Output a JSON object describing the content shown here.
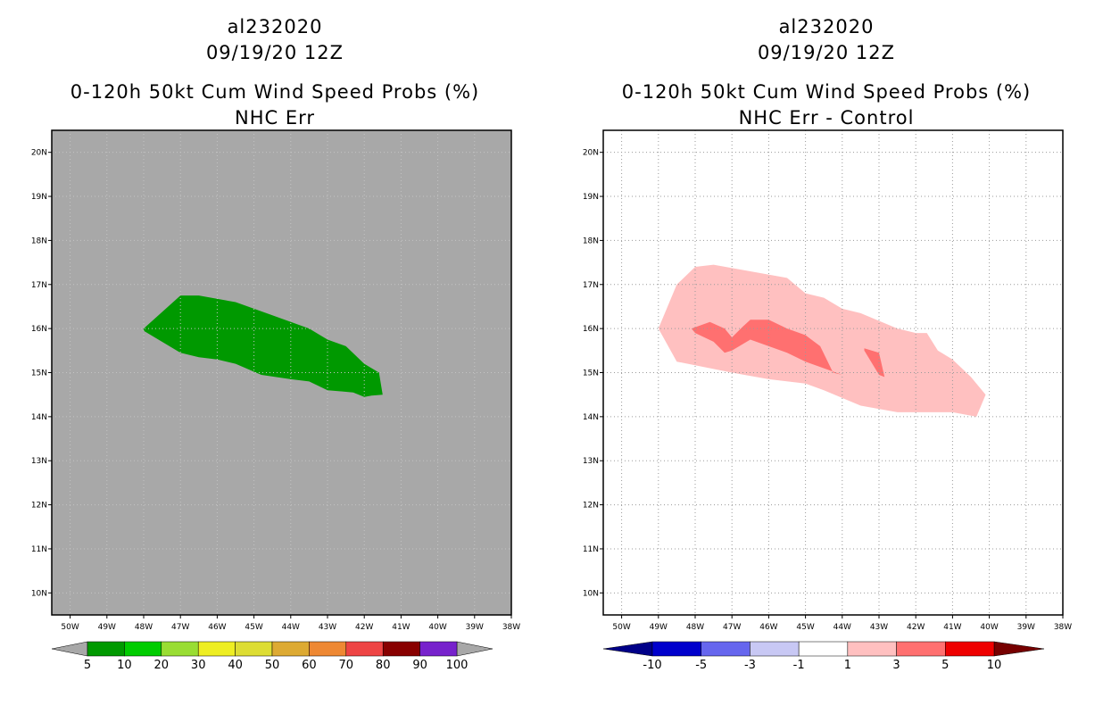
{
  "panels": [
    {
      "id": "left",
      "storm_id": "al232020",
      "datetime": "09/19/20 12Z",
      "title_line1": "0-120h 50kt Cum Wind Speed Probs (%)",
      "title_line2": "NHC Err",
      "background": "#a8a8a8",
      "show_grid": false
    },
    {
      "id": "right",
      "storm_id": "al232020",
      "datetime": "09/19/20 12Z",
      "title_line1": "0-120h 50kt Cum Wind Speed Probs (%)",
      "title_line2": "NHC Err - Control",
      "background": "#ffffff",
      "show_grid": true
    }
  ],
  "chart_data": [
    {
      "type": "map-contour",
      "title": "0-120h 50kt Cum Wind Speed Probs (%)",
      "subtitle": "NHC Err",
      "xlim_lon_west": [
        50.5,
        38
      ],
      "ylim_lat_north": [
        9.5,
        20.5
      ],
      "x_ticks": [
        "50W",
        "49W",
        "48W",
        "47W",
        "46W",
        "45W",
        "44W",
        "43W",
        "42W",
        "41W",
        "40W",
        "39W",
        "38W"
      ],
      "x_tick_values": [
        50,
        49,
        48,
        47,
        46,
        45,
        44,
        43,
        42,
        41,
        40,
        39,
        38
      ],
      "y_ticks": [
        "10N",
        "11N",
        "12N",
        "13N",
        "14N",
        "15N",
        "16N",
        "17N",
        "18N",
        "19N",
        "20N"
      ],
      "y_tick_values": [
        10,
        11,
        12,
        13,
        14,
        15,
        16,
        17,
        18,
        19,
        20
      ],
      "colorbar": {
        "labels": [
          "5",
          "10",
          "20",
          "30",
          "40",
          "50",
          "60",
          "70",
          "80",
          "90",
          "100"
        ],
        "colors": [
          "#009900",
          "#00cc00",
          "#99dd33",
          "#eeee22",
          "#dddd33",
          "#ddaa33",
          "#ee8833",
          "#ee4444",
          "#880000",
          "#7722cc"
        ],
        "lower_arrow_color": "#a8a8a8",
        "upper_arrow_color": "#a8a8a8"
      },
      "regions": [
        {
          "name": "prob-5-10",
          "color": "#009900",
          "points": [
            [
              48.0,
              16.0
            ],
            [
              47.0,
              16.75
            ],
            [
              46.5,
              16.75
            ],
            [
              45.5,
              16.6
            ],
            [
              44.5,
              16.3
            ],
            [
              43.5,
              16.0
            ],
            [
              43.0,
              15.75
            ],
            [
              42.5,
              15.6
            ],
            [
              42.0,
              15.2
            ],
            [
              41.6,
              15.0
            ],
            [
              41.5,
              14.5
            ],
            [
              41.8,
              14.48
            ],
            [
              42.0,
              14.45
            ],
            [
              42.3,
              14.55
            ],
            [
              43.0,
              14.6
            ],
            [
              43.5,
              14.8
            ],
            [
              44.0,
              14.85
            ],
            [
              44.8,
              14.95
            ],
            [
              45.5,
              15.2
            ],
            [
              46.0,
              15.3
            ],
            [
              46.5,
              15.35
            ],
            [
              47.0,
              15.45
            ],
            [
              48.0,
              15.95
            ]
          ]
        }
      ]
    },
    {
      "type": "map-contour",
      "title": "0-120h 50kt Cum Wind Speed Probs (%)",
      "subtitle": "NHC Err - Control",
      "xlim_lon_west": [
        50.5,
        38
      ],
      "ylim_lat_north": [
        9.5,
        20.5
      ],
      "x_ticks": [
        "50W",
        "49W",
        "48W",
        "47W",
        "46W",
        "45W",
        "44W",
        "43W",
        "42W",
        "41W",
        "40W",
        "39W",
        "38W"
      ],
      "x_tick_values": [
        50,
        49,
        48,
        47,
        46,
        45,
        44,
        43,
        42,
        41,
        40,
        39,
        38
      ],
      "y_ticks": [
        "10N",
        "11N",
        "12N",
        "13N",
        "14N",
        "15N",
        "16N",
        "17N",
        "18N",
        "19N",
        "20N"
      ],
      "y_tick_values": [
        10,
        11,
        12,
        13,
        14,
        15,
        16,
        17,
        18,
        19,
        20
      ],
      "colorbar": {
        "labels": [
          "-10",
          "-5",
          "-3",
          "-1",
          "1",
          "3",
          "5",
          "10"
        ],
        "colors": [
          "#0000cc",
          "#6666ee",
          "#c8c8f4",
          "#ffffff",
          "#ffc0c0",
          "#ff7070",
          "#ee0000"
        ],
        "lower_arrow_color": "#000088",
        "upper_arrow_color": "#770000"
      },
      "regions": [
        {
          "name": "diff-1-3",
          "color": "#ffc0c0",
          "points": [
            [
              49.0,
              16.0
            ],
            [
              48.5,
              17.0
            ],
            [
              48.0,
              17.4
            ],
            [
              47.5,
              17.45
            ],
            [
              46.5,
              17.3
            ],
            [
              45.5,
              17.15
            ],
            [
              45.0,
              16.8
            ],
            [
              44.5,
              16.7
            ],
            [
              44.0,
              16.45
            ],
            [
              43.5,
              16.35
            ],
            [
              42.5,
              16.0
            ],
            [
              42.0,
              15.9
            ],
            [
              41.7,
              15.9
            ],
            [
              41.4,
              15.5
            ],
            [
              41.0,
              15.3
            ],
            [
              40.5,
              14.9
            ],
            [
              40.1,
              14.5
            ],
            [
              40.35,
              14.0
            ],
            [
              41.0,
              14.1
            ],
            [
              42.5,
              14.1
            ],
            [
              43.5,
              14.25
            ],
            [
              44.5,
              14.6
            ],
            [
              45.0,
              14.75
            ],
            [
              46.0,
              14.85
            ],
            [
              47.0,
              15.0
            ],
            [
              48.5,
              15.25
            ]
          ]
        },
        {
          "name": "diff-3-5-main",
          "color": "#ff7070",
          "points": [
            [
              48.1,
              16.0
            ],
            [
              47.6,
              16.15
            ],
            [
              47.2,
              16.0
            ],
            [
              47.0,
              15.8
            ],
            [
              46.7,
              16.05
            ],
            [
              46.5,
              16.2
            ],
            [
              46.0,
              16.2
            ],
            [
              45.5,
              16.0
            ],
            [
              45.0,
              15.85
            ],
            [
              44.6,
              15.6
            ],
            [
              44.25,
              15.0
            ],
            [
              44.0,
              14.95
            ],
            [
              44.5,
              15.1
            ],
            [
              45.0,
              15.25
            ],
            [
              45.5,
              15.45
            ],
            [
              46.0,
              15.6
            ],
            [
              46.5,
              15.75
            ],
            [
              47.0,
              15.5
            ],
            [
              47.2,
              15.45
            ],
            [
              47.5,
              15.7
            ],
            [
              48.0,
              15.9
            ]
          ]
        },
        {
          "name": "diff-3-5-small",
          "color": "#ff7070",
          "points": [
            [
              43.4,
              15.55
            ],
            [
              43.0,
              15.45
            ],
            [
              42.85,
              14.9
            ],
            [
              43.0,
              14.95
            ],
            [
              43.4,
              15.5
            ]
          ]
        }
      ]
    }
  ]
}
